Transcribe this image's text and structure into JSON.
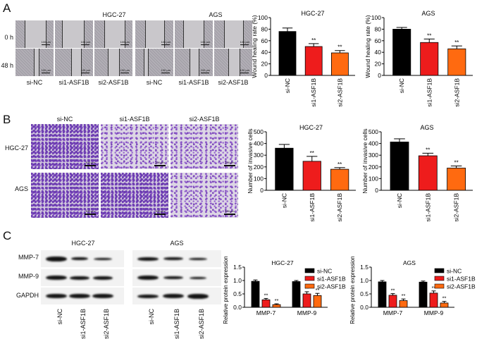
{
  "panels": {
    "A": {
      "letter": "A",
      "cell_lines": [
        "HGC-27",
        "AGS"
      ],
      "row_labels": [
        "0 h",
        "48 h"
      ],
      "column_labels": [
        "si-NC",
        "si1-ASF1B",
        "si2-ASF1B",
        "si-NC",
        "si1-ASF1B",
        "si2-ASF1B"
      ],
      "scale_bar": "100 μm"
    },
    "B": {
      "letter": "B",
      "column_labels": [
        "si-NC",
        "si1-ASF1B",
        "si2-ASF1B"
      ],
      "row_labels": [
        "HGC-27",
        "AGS"
      ],
      "scale_bar": "100 μm"
    },
    "C": {
      "letter": "C",
      "cell_lines": [
        "HGC-27",
        "AGS"
      ],
      "row_labels": [
        "MMP-7",
        "MMP-9",
        "GAPDH"
      ],
      "lane_labels": [
        "si-NC",
        "si1-ASF1B",
        "si2-ASF1B",
        "si-NC",
        "si1-ASF1B",
        "si2-ASF1B"
      ]
    }
  },
  "colors": {
    "si-NC": "#000000",
    "si1-ASF1B": "#ee1c1c",
    "si2-ASF1B": "#ff6a10"
  },
  "chart_data": [
    {
      "id": "A-HGC-27",
      "type": "bar",
      "title": "HGC-27",
      "xlabel": "",
      "ylabel": "Wound healing rate (%)",
      "categories": [
        "si-NC",
        "si1-ASF1B",
        "si2-ASF1B"
      ],
      "values": [
        76,
        50,
        39
      ],
      "errors": [
        6,
        5,
        4
      ],
      "significance": [
        "",
        "**",
        "**"
      ],
      "ylim": [
        0,
        100
      ],
      "yticks": [
        0,
        20,
        40,
        60,
        80,
        100
      ],
      "grid": false
    },
    {
      "id": "A-AGS",
      "type": "bar",
      "title": "AGS",
      "xlabel": "",
      "ylabel": "Wound healing rate (%)",
      "categories": [
        "si-NC",
        "si1-ASF1B",
        "si2-ASF1B"
      ],
      "values": [
        80,
        57,
        46
      ],
      "errors": [
        3,
        6,
        5
      ],
      "significance": [
        "",
        "**",
        "**"
      ],
      "ylim": [
        0,
        100
      ],
      "yticks": [
        0,
        20,
        40,
        60,
        80,
        100
      ],
      "grid": false
    },
    {
      "id": "B-HGC-27",
      "type": "bar",
      "title": "HGC-27",
      "xlabel": "",
      "ylabel": "Number of invasive cells",
      "categories": [
        "si-NC",
        "si1-ASF1B",
        "si2-ASF1B"
      ],
      "values": [
        360,
        248,
        180
      ],
      "errors": [
        32,
        42,
        14
      ],
      "significance": [
        "",
        "**",
        "**"
      ],
      "ylim": [
        0,
        500
      ],
      "yticks": [
        0,
        100,
        200,
        300,
        400,
        500
      ],
      "grid": false
    },
    {
      "id": "B-AGS",
      "type": "bar",
      "title": "AGS",
      "xlabel": "",
      "ylabel": "Number of invasive cells",
      "categories": [
        "si-NC",
        "si1-ASF1B",
        "si2-ASF1B"
      ],
      "values": [
        413,
        295,
        190
      ],
      "errors": [
        27,
        22,
        18
      ],
      "significance": [
        "",
        "**",
        "**"
      ],
      "ylim": [
        0,
        500
      ],
      "yticks": [
        0,
        100,
        200,
        300,
        400,
        500
      ],
      "grid": false
    },
    {
      "id": "C-HGC-27",
      "type": "bar",
      "title": "HGC-27",
      "xlabel": "",
      "ylabel": "Relative protein expression",
      "categories": [
        "MMP-7",
        "MMP-9"
      ],
      "series": [
        {
          "name": "si-NC",
          "values": [
            0.97,
            0.96
          ],
          "errors": [
            0.05,
            0.04
          ],
          "significance": [
            "",
            ""
          ]
        },
        {
          "name": "si1-ASF1B",
          "values": [
            0.28,
            0.5
          ],
          "errors": [
            0.05,
            0.08
          ],
          "significance": [
            "**",
            "**"
          ]
        },
        {
          "name": "si2-ASF1B",
          "values": [
            0.1,
            0.44
          ],
          "errors": [
            0.03,
            0.08
          ],
          "significance": [
            "**",
            "**"
          ]
        }
      ],
      "ylim": [
        0,
        1.5
      ],
      "yticks": [
        "0.0",
        "0.5",
        "1.0",
        "1.5"
      ],
      "legend_position": "top-right",
      "grid": false
    },
    {
      "id": "C-AGS",
      "type": "bar",
      "title": "AGS",
      "xlabel": "",
      "ylabel": "Relative protein expression",
      "categories": [
        "MMP-7",
        "MMP-9"
      ],
      "series": [
        {
          "name": "si-NC",
          "values": [
            0.95,
            0.94
          ],
          "errors": [
            0.05,
            0.04
          ],
          "significance": [
            "",
            ""
          ]
        },
        {
          "name": "si1-ASF1B",
          "values": [
            0.45,
            0.53
          ],
          "errors": [
            0.06,
            0.08
          ],
          "significance": [
            "**",
            "**"
          ]
        },
        {
          "name": "si2-ASF1B",
          "values": [
            0.25,
            0.16
          ],
          "errors": [
            0.06,
            0.06
          ],
          "significance": [
            "**",
            "**"
          ]
        }
      ],
      "ylim": [
        0,
        1.5
      ],
      "yticks": [
        "0.0",
        "0.5",
        "1.0",
        "1.5"
      ],
      "legend_position": "top-right",
      "grid": false
    }
  ]
}
